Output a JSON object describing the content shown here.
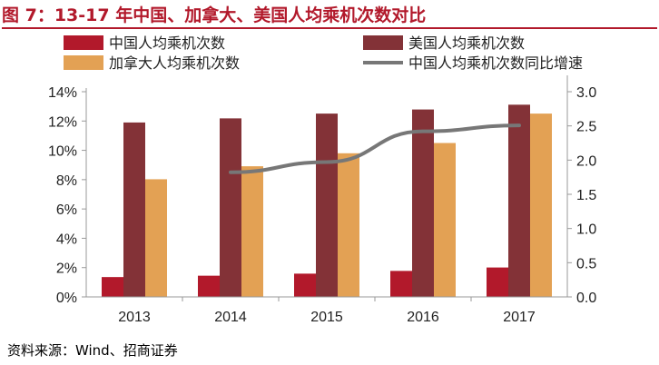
{
  "figure": {
    "title": "图 7：13-17 年中国、加拿大、美国人均乘机次数对比",
    "source": "资料来源：Wind、招商证券"
  },
  "chart_data": {
    "type": "bar",
    "title": "",
    "xlabel": "",
    "ylabel": "",
    "categories": [
      "2013",
      "2014",
      "2015",
      "2016",
      "2017"
    ],
    "y_left": {
      "range": [
        0,
        14
      ],
      "ticks": [
        0,
        2,
        4,
        6,
        8,
        10,
        12,
        14
      ],
      "tick_labels": [
        "0%",
        "2%",
        "4%",
        "6%",
        "8%",
        "10%",
        "12%",
        "14%"
      ]
    },
    "y_right": {
      "range": [
        0,
        3.0
      ],
      "ticks": [
        0,
        0.5,
        1.0,
        1.5,
        2.0,
        2.5,
        3.0
      ],
      "tick_labels": [
        "0.0",
        "0.5",
        "1.0",
        "1.5",
        "2.0",
        "2.5",
        "3.0"
      ]
    },
    "series": [
      {
        "name": "中国人均乘机次数",
        "kind": "bar",
        "axis": "right",
        "color": "#b2192b",
        "values": [
          0.29,
          0.31,
          0.34,
          0.38,
          0.43
        ]
      },
      {
        "name": "美国人均乘机次数",
        "kind": "bar",
        "axis": "right",
        "color": "#833237",
        "values": [
          2.55,
          2.61,
          2.68,
          2.74,
          2.81
        ]
      },
      {
        "name": "加拿大人均乘机次数",
        "kind": "bar",
        "axis": "right",
        "color": "#e3a154",
        "values": [
          1.72,
          1.91,
          2.1,
          2.25,
          2.68
        ]
      },
      {
        "name": "中国人均乘机次数同比增速",
        "kind": "line",
        "axis": "left",
        "color": "#777777",
        "values": [
          null,
          8.5,
          9.2,
          11.3,
          11.7
        ]
      }
    ],
    "legend": {
      "placement": "top",
      "columns": 2
    },
    "grid": false
  }
}
